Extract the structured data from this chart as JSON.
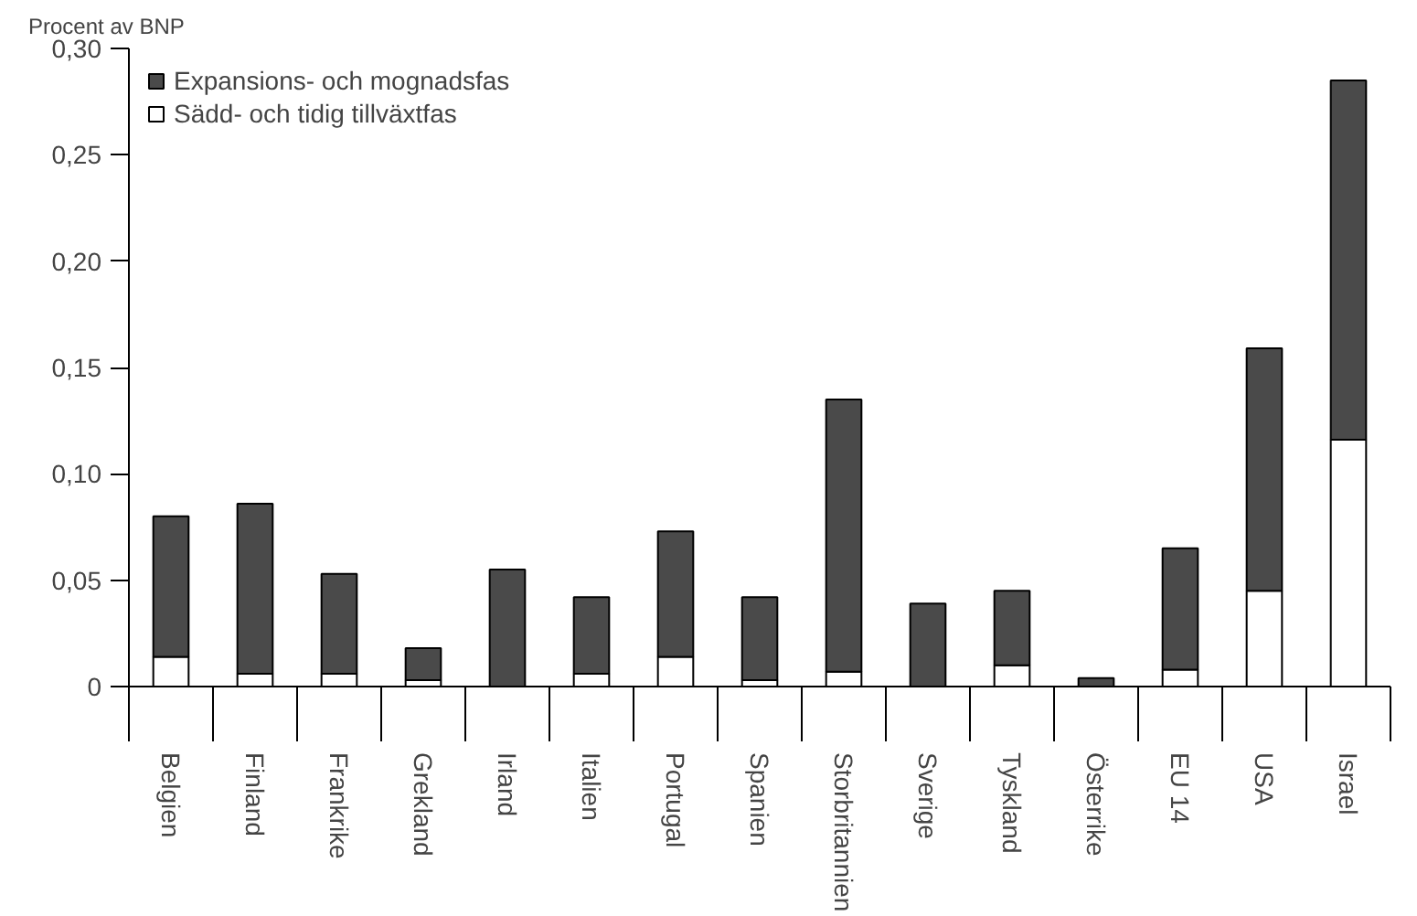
{
  "chart_data": {
    "type": "bar",
    "stacked": true,
    "ylabel": "Procent av BNP",
    "categories": [
      "Belgien",
      "Finland",
      "Frankrike",
      "Grekland",
      "Irland",
      "Italien",
      "Portugal",
      "Spanien",
      "Storbritannien",
      "Sverige",
      "Tyskland",
      "Österrike",
      "EU 14",
      "USA",
      "Israel"
    ],
    "series": [
      {
        "name": "Sädd- och tidig tillväxtfas",
        "color": "#ffffff",
        "values": [
          0.014,
          0.006,
          0.006,
          0.003,
          null,
          0.006,
          0.014,
          0.003,
          0.007,
          null,
          0.01,
          0.0,
          0.008,
          0.045,
          0.116
        ]
      },
      {
        "name": "Expansions- och mognadsfas",
        "color": "#4a4a4a",
        "values": [
          0.066,
          0.08,
          0.047,
          0.015,
          0.055,
          0.036,
          0.059,
          0.039,
          0.128,
          0.039,
          0.035,
          0.004,
          0.057,
          0.114,
          0.169
        ]
      }
    ],
    "ylim": [
      0,
      0.3
    ],
    "yticks": [
      0,
      {
        "value": 0.05,
        "label": "0,05"
      },
      {
        "value": 0.1,
        "label": "0,10"
      },
      {
        "value": 0.15,
        "label": "0,15"
      },
      {
        "value": 0.2,
        "label": "0,20"
      },
      {
        "value": 0.25,
        "label": "0,25"
      },
      {
        "value": 0.3,
        "label": "0,30"
      }
    ],
    "grid": false,
    "legend": "top left"
  }
}
